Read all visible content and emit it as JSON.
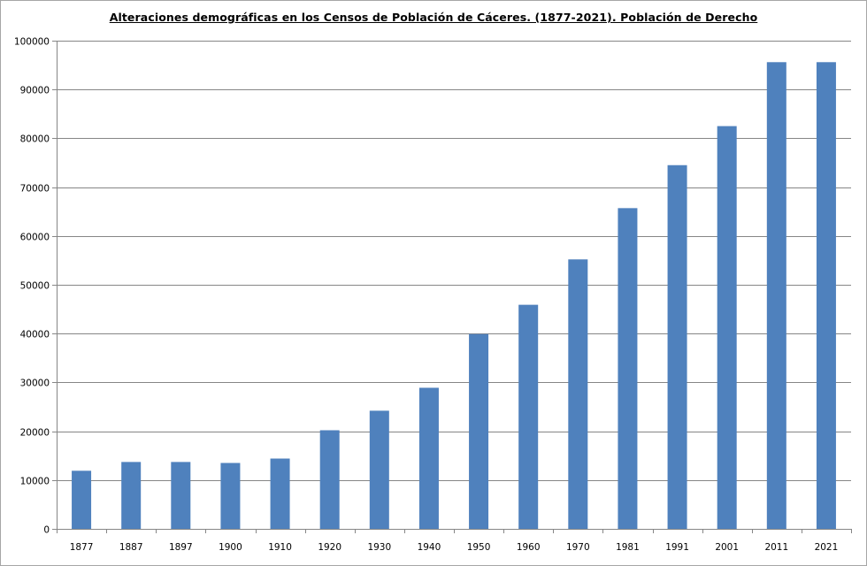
{
  "chart_data": {
    "type": "bar",
    "title": "Alteraciones demográficas en los Censos de Población de Cáceres. (1877-2021). Población de Derecho",
    "xlabel": "",
    "ylabel": "",
    "categories": [
      "1877",
      "1887",
      "1897",
      "1900",
      "1910",
      "1920",
      "1930",
      "1940",
      "1950",
      "1960",
      "1970",
      "1981",
      "1991",
      "2001",
      "2011",
      "2021"
    ],
    "series": [
      {
        "values": [
          11900,
          13700,
          13700,
          13500,
          14400,
          20200,
          24200,
          28900,
          39900,
          45900,
          55200,
          65700,
          74500,
          82500,
          95600,
          95600
        ]
      }
    ],
    "ylim": [
      0,
      100000
    ],
    "yticks": [
      0,
      10000,
      20000,
      30000,
      40000,
      50000,
      60000,
      70000,
      80000,
      90000,
      100000
    ],
    "grid": true,
    "legend": "none",
    "colors": {
      "bar": "#4f81bd",
      "grid": "#868686",
      "axis": "#868686"
    }
  }
}
